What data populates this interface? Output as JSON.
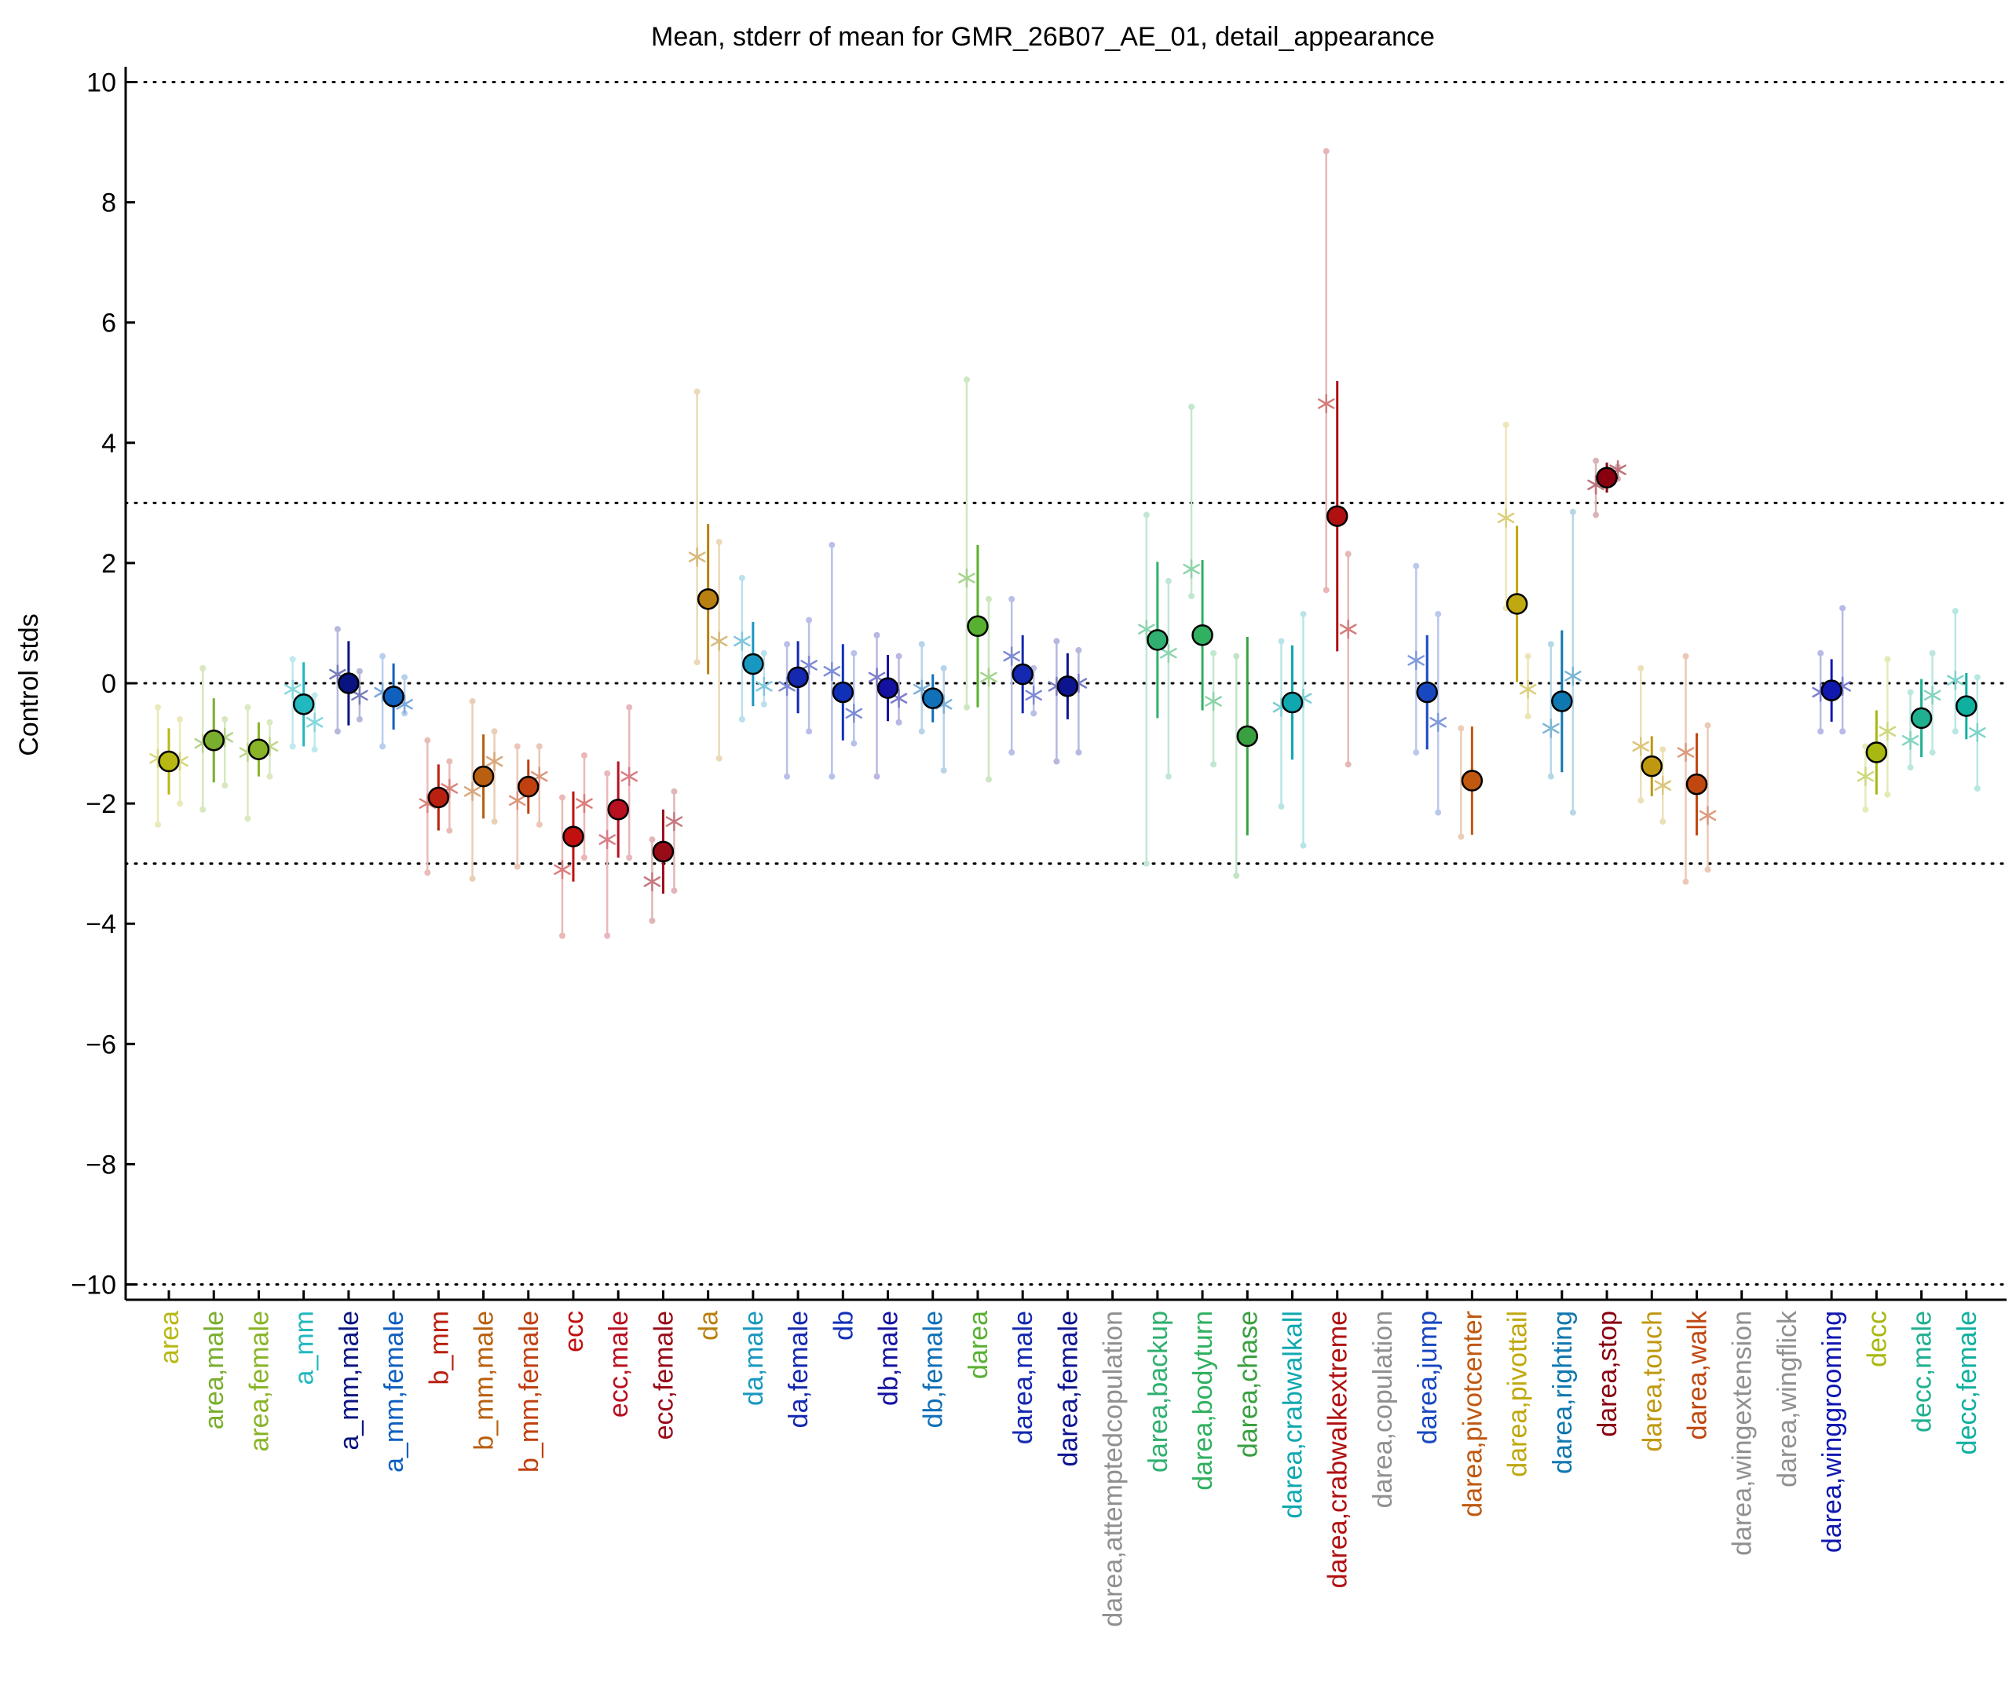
{
  "chart_data": {
    "type": "scatter",
    "title": "Mean, stderr of mean for GMR_26B07_AE_01, detail_appearance",
    "xlabel": "",
    "ylabel": "Control stds",
    "ylim": [
      -10.2,
      10.2
    ],
    "yticks": [
      10,
      8,
      6,
      4,
      2,
      0,
      -2,
      -4,
      -6,
      -8,
      -10
    ],
    "ytick_labels": [
      "10",
      "8",
      "6",
      "4",
      "2",
      "0",
      "−2",
      "−4",
      "−6",
      "−8",
      "−10"
    ],
    "reference_lines": [
      10,
      3,
      0,
      -3,
      -10
    ],
    "grid": false,
    "legend": "none",
    "categories": [
      {
        "label": "area",
        "color": "#b8b814",
        "mean": -1.3,
        "err": 0.55,
        "stars": [
          -1.25,
          -1.3
        ],
        "dots": [
          -0.4,
          -2.35,
          -0.6,
          -2.0
        ]
      },
      {
        "label": "area,male",
        "color": "#7aae2e",
        "mean": -0.95,
        "err": 0.7,
        "stars": [
          -1.0,
          -0.9
        ],
        "dots": [
          0.25,
          -2.1,
          -0.6,
          -1.7
        ]
      },
      {
        "label": "area,female",
        "color": "#8ab428",
        "mean": -1.1,
        "err": 0.45,
        "stars": [
          -1.15,
          -1.05
        ],
        "dots": [
          -0.4,
          -2.25,
          -0.65,
          -1.55
        ]
      },
      {
        "label": "a_mm",
        "color": "#22b8c0",
        "mean": -0.35,
        "err": 0.7,
        "stars": [
          -0.1,
          -0.65
        ],
        "dots": [
          0.4,
          -1.05,
          -0.2,
          -1.1
        ]
      },
      {
        "label": "a_mm,male",
        "color": "#0a1480",
        "mean": 0.0,
        "err": 0.7,
        "stars": [
          0.15,
          -0.2
        ],
        "dots": [
          0.9,
          -0.8,
          0.2,
          -0.6
        ]
      },
      {
        "label": "a_mm,female",
        "color": "#1060c0",
        "mean": -0.22,
        "err": 0.55,
        "stars": [
          -0.15,
          -0.35
        ],
        "dots": [
          0.45,
          -1.05,
          0.1,
          -0.5
        ]
      },
      {
        "label": "b_mm",
        "color": "#b82010",
        "mean": -1.9,
        "err": 0.55,
        "stars": [
          -2.0,
          -1.75
        ],
        "dots": [
          -0.95,
          -3.15,
          -1.3,
          -2.45
        ]
      },
      {
        "label": "b_mm,male",
        "color": "#b86010",
        "mean": -1.55,
        "err": 0.7,
        "stars": [
          -1.8,
          -1.3
        ],
        "dots": [
          -0.3,
          -3.25,
          -0.8,
          -2.3
        ]
      },
      {
        "label": "b_mm,female",
        "color": "#c04010",
        "mean": -1.72,
        "err": 0.45,
        "stars": [
          -1.95,
          -1.55
        ],
        "dots": [
          -1.05,
          -3.05,
          -1.05,
          -2.35
        ]
      },
      {
        "label": "ecc",
        "color": "#c01010",
        "mean": -2.55,
        "err": 0.75,
        "stars": [
          -3.1,
          -2.0
        ],
        "dots": [
          -1.9,
          -4.2,
          -1.2,
          -2.9
        ]
      },
      {
        "label": "ecc,male",
        "color": "#b81020",
        "mean": -2.1,
        "err": 0.8,
        "stars": [
          -2.6,
          -1.55
        ],
        "dots": [
          -1.5,
          -4.2,
          -0.4,
          -2.9
        ]
      },
      {
        "label": "ecc,female",
        "color": "#980c18",
        "mean": -2.8,
        "err": 0.7,
        "stars": [
          -3.3,
          -2.3
        ],
        "dots": [
          -2.6,
          -3.95,
          -1.8,
          -3.45
        ]
      },
      {
        "label": "da",
        "color": "#b88010",
        "mean": 1.4,
        "err": 1.25,
        "stars": [
          2.1,
          0.7
        ],
        "dots": [
          4.85,
          0.35,
          2.35,
          -1.25
        ]
      },
      {
        "label": "da,male",
        "color": "#1898c0",
        "mean": 0.32,
        "err": 0.7,
        "stars": [
          0.7,
          -0.05
        ],
        "dots": [
          1.75,
          -0.6,
          0.5,
          -0.35
        ]
      },
      {
        "label": "da,female",
        "color": "#1428b0",
        "mean": 0.1,
        "err": 0.6,
        "stars": [
          -0.05,
          0.3
        ],
        "dots": [
          0.65,
          -1.55,
          1.05,
          -0.8
        ]
      },
      {
        "label": "db",
        "color": "#1030b8",
        "mean": -0.15,
        "err": 0.8,
        "stars": [
          0.2,
          -0.5
        ],
        "dots": [
          2.3,
          -1.55,
          0.5,
          -1.0
        ]
      },
      {
        "label": "db,male",
        "color": "#1410a0",
        "mean": -0.08,
        "err": 0.55,
        "stars": [
          0.1,
          -0.25
        ],
        "dots": [
          0.8,
          -1.55,
          0.45,
          -0.65
        ]
      },
      {
        "label": "db,female",
        "color": "#1070b8",
        "mean": -0.25,
        "err": 0.4,
        "stars": [
          -0.1,
          -0.35
        ],
        "dots": [
          0.65,
          -0.8,
          0.25,
          -1.45
        ]
      },
      {
        "label": "darea",
        "color": "#58b030",
        "mean": 0.95,
        "err": 1.35,
        "stars": [
          1.75,
          0.1
        ],
        "dots": [
          5.05,
          -0.4,
          1.4,
          -1.6
        ]
      },
      {
        "label": "darea,male",
        "color": "#1428b0",
        "mean": 0.15,
        "err": 0.65,
        "stars": [
          0.45,
          -0.2
        ],
        "dots": [
          1.4,
          -1.15,
          0.25,
          -0.5
        ]
      },
      {
        "label": "darea,female",
        "color": "#0c1490",
        "mean": -0.05,
        "err": 0.55,
        "stars": [
          -0.05,
          0.0
        ],
        "dots": [
          0.7,
          -1.3,
          0.55,
          -1.15
        ]
      },
      {
        "label": "darea,attemptedcopulation",
        "color": "#909090",
        "mean": null,
        "err": null,
        "stars": [],
        "dots": []
      },
      {
        "label": "darea,backup",
        "color": "#30b070",
        "mean": 0.72,
        "err": 1.3,
        "stars": [
          0.9,
          0.5
        ],
        "dots": [
          2.8,
          -3.0,
          1.7,
          -1.55
        ]
      },
      {
        "label": "darea,bodyturn",
        "color": "#30b060",
        "mean": 0.8,
        "err": 1.25,
        "stars": [
          1.9,
          -0.3
        ],
        "dots": [
          4.6,
          1.45,
          0.5,
          -1.35
        ]
      },
      {
        "label": "darea,chase",
        "color": "#38a040",
        "mean": -0.88,
        "err": 1.65,
        "stars": [],
        "dots": [
          0.45,
          -3.2
        ]
      },
      {
        "label": "darea,crabwalkall",
        "color": "#10a8b0",
        "mean": -0.32,
        "err": 0.95,
        "stars": [
          -0.4,
          -0.25
        ],
        "dots": [
          0.7,
          -2.05,
          1.15,
          -2.7
        ]
      },
      {
        "label": "darea,crabwalkextreme",
        "color": "#b01010",
        "mean": 2.78,
        "err": 2.25,
        "stars": [
          4.65,
          0.9
        ],
        "dots": [
          8.85,
          1.55,
          2.15,
          -1.35
        ]
      },
      {
        "label": "darea,copulation",
        "color": "#909090",
        "mean": null,
        "err": null,
        "stars": [],
        "dots": []
      },
      {
        "label": "darea,jump",
        "color": "#1848c0",
        "mean": -0.15,
        "err": 0.95,
        "stars": [
          0.38,
          -0.65
        ],
        "dots": [
          1.95,
          -1.15,
          1.15,
          -2.15
        ]
      },
      {
        "label": "darea,pivotcenter",
        "color": "#c05810",
        "mean": -1.62,
        "err": 0.9,
        "stars": [],
        "dots": [
          -0.75,
          -2.55
        ]
      },
      {
        "label": "darea,pivottail",
        "color": "#c0a810",
        "mean": 1.32,
        "err": 1.3,
        "stars": [
          2.75,
          -0.1
        ],
        "dots": [
          4.3,
          1.25,
          0.45,
          -0.55
        ]
      },
      {
        "label": "darea,righting",
        "color": "#1078b0",
        "mean": -0.3,
        "err": 1.18,
        "stars": [
          -0.75,
          0.12
        ],
        "dots": [
          0.65,
          -1.55,
          2.85,
          -2.15
        ]
      },
      {
        "label": "darea,stop",
        "color": "#880010",
        "mean": 3.42,
        "err": 0.25,
        "stars": [
          3.3,
          3.55
        ],
        "dots": [
          3.7,
          2.8,
          3.6,
          3.4
        ]
      },
      {
        "label": "darea,touch",
        "color": "#c09810",
        "mean": -1.38,
        "err": 0.5,
        "stars": [
          -1.05,
          -1.7
        ],
        "dots": [
          0.25,
          -1.95,
          -1.1,
          -2.3
        ]
      },
      {
        "label": "darea,walk",
        "color": "#c04810",
        "mean": -1.68,
        "err": 0.85,
        "stars": [
          -1.15,
          -2.2
        ],
        "dots": [
          0.45,
          -3.3,
          -0.7,
          -3.1
        ]
      },
      {
        "label": "darea,wingextension",
        "color": "#909090",
        "mean": null,
        "err": null,
        "stars": [],
        "dots": []
      },
      {
        "label": "darea,wingflick",
        "color": "#909090",
        "mean": null,
        "err": null,
        "stars": [],
        "dots": []
      },
      {
        "label": "darea,winggrooming",
        "color": "#1018b0",
        "mean": -0.12,
        "err": 0.52,
        "stars": [
          -0.15,
          -0.05
        ],
        "dots": [
          0.5,
          -0.8,
          1.25,
          -0.8
        ]
      },
      {
        "label": "decc",
        "color": "#a8b810",
        "mean": -1.15,
        "err": 0.7,
        "stars": [
          -1.55,
          -0.8
        ],
        "dots": [
          -1.05,
          -2.1,
          0.4,
          -1.85
        ]
      },
      {
        "label": "decc,male",
        "color": "#20b090",
        "mean": -0.58,
        "err": 0.65,
        "stars": [
          -0.95,
          -0.2
        ],
        "dots": [
          -0.15,
          -1.4,
          0.5,
          -1.15
        ]
      },
      {
        "label": "decc,female",
        "color": "#10b0a0",
        "mean": -0.38,
        "err": 0.55,
        "stars": [
          0.05,
          -0.82
        ],
        "dots": [
          1.2,
          -0.8,
          0.1,
          -1.75
        ]
      }
    ]
  }
}
